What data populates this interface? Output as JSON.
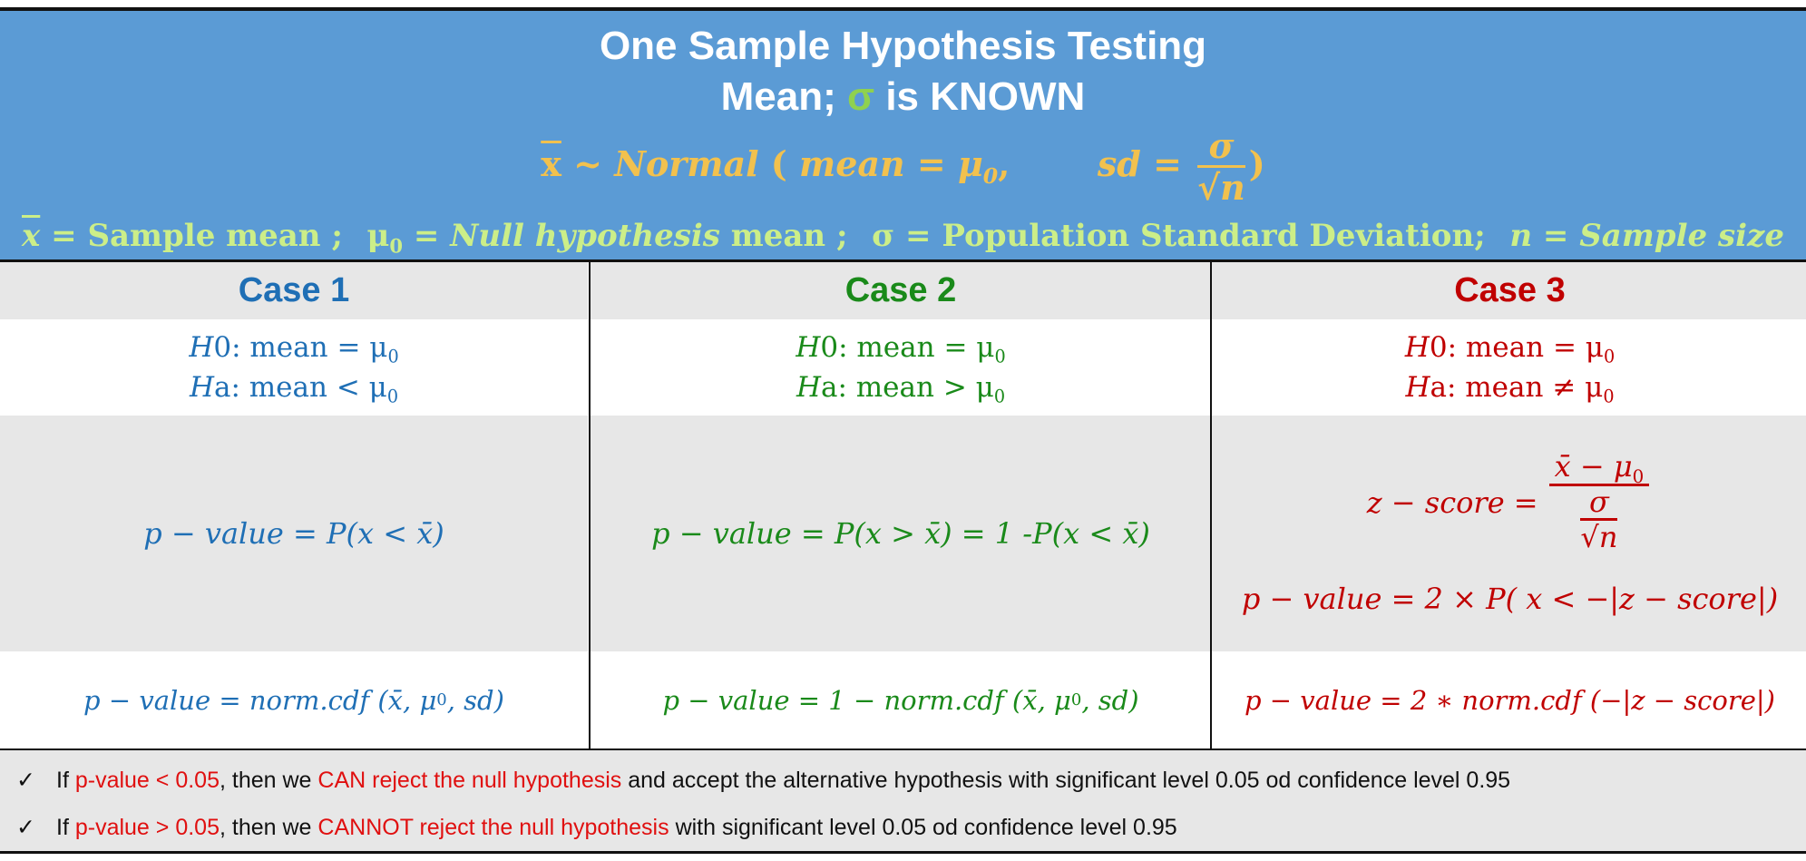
{
  "header": {
    "title_line1": "One Sample Hypothesis Testing",
    "title_line2_pre": "Mean; ",
    "title_line2_sigma": "σ",
    "title_line2_post": " is KNOWN",
    "distribution": {
      "xbar": "x",
      "tilde": " ~ ",
      "normal": "Normal",
      "open": " ( ",
      "mean_eq": "mean = μ",
      "mu_sub": "0",
      "comma": ",",
      "sd_eq": "sd = ",
      "frac_num": "σ",
      "frac_den_root": "√",
      "frac_den": "n",
      "close": ")"
    },
    "definitions": [
      {
        "symbol": "x",
        "bar": true,
        "text": " = Sample mean ;"
      },
      {
        "symbol": "μ",
        "sub": "0",
        "text_italic": " = Null hypothesis",
        "text": " mean  ;"
      },
      {
        "symbol": "σ",
        "text": " = Population Standard Deviation;"
      },
      {
        "symbol": "n",
        "text_italic": " = Sample size"
      }
    ]
  },
  "cases": [
    {
      "label": "Case 1",
      "h0_label": "H",
      "h0_suffix": "0:  mean = μ",
      "h0_sub": "0",
      "ha_label": "H",
      "ha_suffix": "a:  mean < μ",
      "ha_sub": "0",
      "p_value": "p − value  =  P(x  < x̄)",
      "python": "p − value  = norm.cdf (x̄, μ",
      "python_sub": "0",
      "python_end": ", sd)"
    },
    {
      "label": "Case 2",
      "h0_label": "H",
      "h0_suffix": "0:  mean = μ",
      "h0_sub": "0",
      "ha_label": "H",
      "ha_suffix": "a:  mean > μ",
      "ha_sub": "0",
      "p_value": "p − value  = P(x >  x̄) = 1 -P(x  < x̄)",
      "python": "p − value  = 1  − norm.cdf (x̄, μ",
      "python_sub": "0",
      "python_end": ", sd)"
    },
    {
      "label": "Case 3",
      "h0_label": "H",
      "h0_suffix": "0:  mean = μ",
      "h0_sub": "0",
      "ha_label": "H",
      "ha_suffix": "a:  mean ≠ μ",
      "ha_sub": "0",
      "z_left": "z − score =",
      "z_num": "x̄ − μ",
      "z_num_sub": "0",
      "z_den_num": "σ",
      "z_den_den": "√n",
      "p_value": "p − value  = 2 × P( x < −|z − score|)",
      "python": "p − value  = 2  ∗  norm.cdf (−|z − score|)"
    }
  ],
  "footer": {
    "check_symbol": "✓",
    "bullet1": {
      "t1": "If ",
      "r1": "p-value < 0.05",
      "t2": ", then we ",
      "r2": "CAN reject the null hypothesis",
      "t3": " and accept the alternative hypothesis  with significant level 0.05 od confidence level 0.95"
    },
    "bullet2": {
      "t1": "If ",
      "r1": "p-value > 0.05",
      "t2": ", then we ",
      "r2": "CANNOT reject the null hypothesis",
      "t3": " with significant level 0.05 od confidence level 0.95"
    }
  },
  "colors": {
    "header_bg": "#5b9bd5",
    "distribution": "#f2c14e",
    "definitions": "#ccee88",
    "case1": "#1f6fb5",
    "case2": "#1a8a1a",
    "case3": "#c00000",
    "highlight_red": "#e01010",
    "row_shade": "#e7e7e7"
  }
}
